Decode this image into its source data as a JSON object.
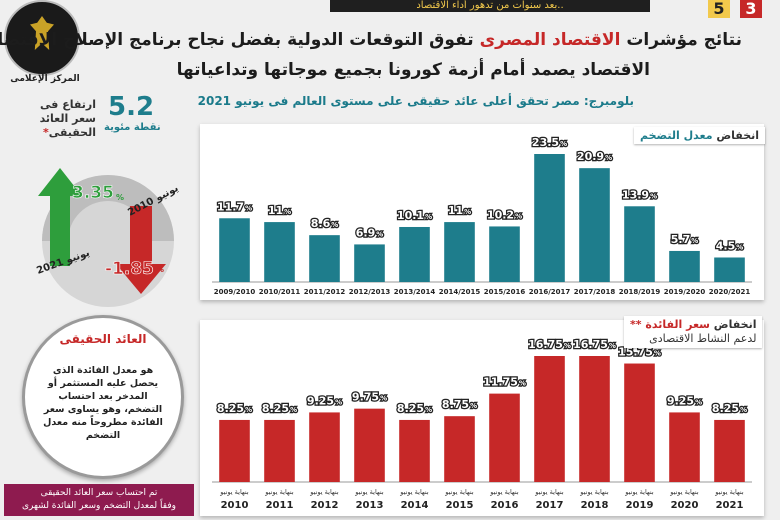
{
  "top_banner": "بعد سنوات من تدهور أداء الاقتصاد..",
  "page_numbers": {
    "left": "5",
    "right": "3"
  },
  "headline": {
    "line1_pre": "نتائج مؤشرات ",
    "line1_hl": "الاقتصاد المصرى",
    "line1_post": " تفوق التوقعات الدولية بفضل نجاح برنامج الإصلاح الاقتصادى",
    "line2": "الاقتصاد يصمد أمام أزمة كورونا بجميع موجاتها وتداعياتها"
  },
  "subheadline": "بلومبرج: مصر تحقق أعلى عائد حقيقى على مستوى العالم فى يونيو 2021",
  "logo": {
    "caption": "المركز الإعلامى"
  },
  "colors": {
    "teal": "#1e7d8c",
    "red": "#c62828",
    "green": "#2e9e3c",
    "maroon": "#8e1b4f"
  },
  "real_yield": {
    "rise_value": "5.2",
    "rise_unit": "نقطة مئوية",
    "rise_label": "ارتفاع فى سعر العائد الحقيقى",
    "rise_star": "*",
    "june_2021_label": "يونيو 2021",
    "june_2021_value": "3.35",
    "june_2010_label": "يونيو 2010",
    "june_2010_value": "-1.85",
    "percent": "%"
  },
  "definition": {
    "title": "العائد الحقيقى",
    "body": "هو معدل الفائدة الذى يحصل عليه المستثمر أو المدخر بعد احتساب التضخم، وهو يساوى سعر الفائدة مطروحاً منه معدل التضخم"
  },
  "footnote": {
    "line1": "تم احتساب سعر العائد الحقيقى",
    "line2": "وفقاً لمعدل التضخم وسعر الفائدة لشهرى"
  },
  "chart_data": [
    {
      "type": "bar",
      "title_pre": "انخفاض ",
      "title_hl": "معدل التضخم",
      "categories": [
        "2009/2010",
        "2010/2011",
        "2011/2012",
        "2012/2013",
        "2013/2014",
        "2014/2015",
        "2015/2016",
        "2016/2017",
        "2017/2018",
        "2018/2019",
        "2019/2020",
        "2020/2021"
      ],
      "values": [
        11.7,
        11,
        8.6,
        6.9,
        10.1,
        11,
        10.2,
        23.5,
        20.9,
        13.9,
        5.7,
        4.5
      ],
      "value_unit": "%",
      "color": "#1e7d8c"
    },
    {
      "type": "bar",
      "title_pre": "انخفاض ",
      "title_hl": "سعر الفائدة",
      "title_star": " **",
      "subtitle": "لدعم النشاط الاقتصادى",
      "category_prefix": "بنهاية يونيو",
      "categories": [
        "2010",
        "2011",
        "2012",
        "2013",
        "2014",
        "2015",
        "2016",
        "2017",
        "2018",
        "2019",
        "2020",
        "2021"
      ],
      "values": [
        8.25,
        8.25,
        9.25,
        9.75,
        8.25,
        8.75,
        11.75,
        16.75,
        16.75,
        15.75,
        9.25,
        8.25
      ],
      "value_unit": "%",
      "color": "#c62828"
    }
  ]
}
